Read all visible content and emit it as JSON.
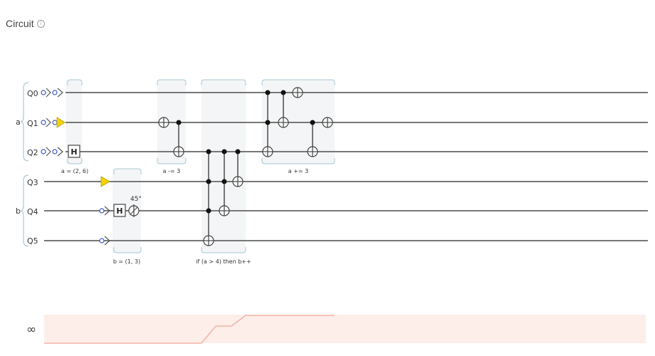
{
  "header": {
    "title": "Circuit",
    "info_icon": "info-circle-icon"
  },
  "registers": [
    {
      "name": "a",
      "qubits": [
        "Q0",
        "Q1",
        "Q2"
      ]
    },
    {
      "name": "b",
      "qubits": [
        "Q3",
        "Q4",
        "Q5"
      ]
    }
  ],
  "gate_labels": {
    "hadamard": "H",
    "phase_angle": "45°"
  },
  "group_captions": [
    "a = (2, 6)",
    "b = (1, 3)",
    "a -= 3",
    "if (a > 4) then b++",
    "a += 3"
  ],
  "infinity_symbol": "∞",
  "colors": {
    "wire": "#777777",
    "group_fill": "#f3f5f6",
    "group_border": "#a9c8d6",
    "yellow_marker": "#f5d200",
    "probe_blue": "#3b57c6",
    "chart_fill": "#fdeeea",
    "chart_line": "#f3b3a6"
  }
}
